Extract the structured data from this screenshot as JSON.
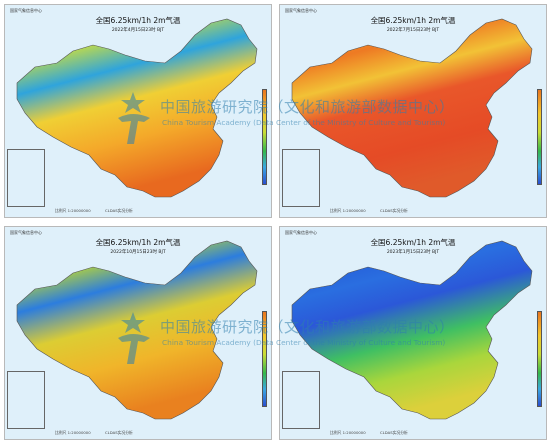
{
  "panels": [
    {
      "agency": "国家气象信息中心",
      "title": "全国6.25km/1h 2m气温",
      "time": "2022年4月15日23时 BJT",
      "scale": "比例尺 1:20000000",
      "maker": "CLDAS实况分析",
      "palette": "spring"
    },
    {
      "agency": "国家气象信息中心",
      "title": "全国6.25km/1h 2m气温",
      "time": "2022年7月15日23时 BJT",
      "scale": "比例尺 1:20000000",
      "maker": "CLDAS实况分析",
      "palette": "summer"
    },
    {
      "agency": "国家气象信息中心",
      "title": "全国6.25km/1h 2m气温",
      "time": "2022年10月15日23时 BJT",
      "scale": "比例尺 1:20000000",
      "maker": "CLDAS实况分析",
      "palette": "autumn"
    },
    {
      "agency": "国家气象信息中心",
      "title": "全国6.25km/1h 2m气温",
      "time": "2023年1月15日23时 BJT",
      "scale": "比例尺 1:20000000",
      "maker": "CLDAS实况分析",
      "palette": "winter"
    }
  ],
  "watermark": {
    "name_cn": "中国旅游研究院（文化和旅游部数据中心）",
    "name_en": "China Tourism Academy (Data Center of the Ministry of Culture and Tourism)"
  },
  "colors": {
    "ocean": "#dff0fa",
    "border": "#555555",
    "watermark": "#2f7fae"
  }
}
